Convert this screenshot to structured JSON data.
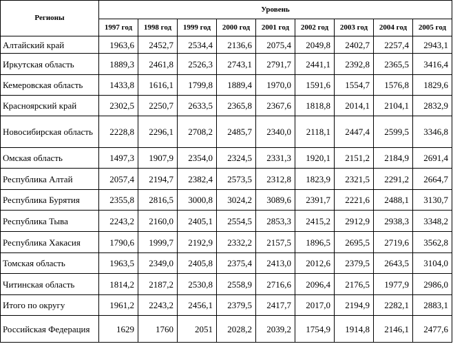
{
  "table": {
    "header": {
      "regions": "Регионы",
      "level": "Уровень",
      "years": [
        "1997 год",
        "1998 год",
        "1999 год",
        "2000 год",
        "2001 год",
        "2002 год",
        "2003 год",
        "2004 год",
        "2005 год"
      ]
    },
    "rows": [
      {
        "region": "Алтайский край",
        "values": [
          "1963,6",
          "2452,7",
          "2534,4",
          "2136,6",
          "2075,4",
          "2049,8",
          "2402,7",
          "2257,4",
          "2943,1"
        ]
      },
      {
        "region": "Иркутская область",
        "values": [
          "1889,3",
          "2461,8",
          "2526,3",
          "2743,1",
          "2791,7",
          "2441,1",
          "2392,8",
          "2365,5",
          "3416,4"
        ]
      },
      {
        "region": "Кемеровская область",
        "values": [
          "1433,8",
          "1616,1",
          "1799,8",
          "1889,4",
          "1970,0",
          "1591,6",
          "1554,7",
          "1576,8",
          "1829,6"
        ]
      },
      {
        "region": "Красноярский край",
        "values": [
          "2302,5",
          "2250,7",
          "2633,5",
          "2365,8",
          "2367,6",
          "1818,8",
          "2014,1",
          "2104,1",
          "2832,9"
        ]
      },
      {
        "region": "Новосибирская область",
        "values": [
          "2228,8",
          "2296,1",
          "2708,2",
          "2485,7",
          "2340,0",
          "2118,1",
          "2447,4",
          "2599,5",
          "3346,8"
        ]
      },
      {
        "region": "Омская область",
        "values": [
          "1497,3",
          "1907,9",
          "2354,0",
          "2324,5",
          "2331,3",
          "1920,1",
          "2151,2",
          "2184,9",
          "2691,4"
        ]
      },
      {
        "region": "Республика Алтай",
        "values": [
          "2057,4",
          "2194,7",
          "2382,4",
          "2573,5",
          "2312,8",
          "1823,9",
          "2321,5",
          "2291,2",
          "2664,7"
        ]
      },
      {
        "region": "Республика Бурятия",
        "values": [
          "2355,8",
          "2816,5",
          "3000,8",
          "3024,2",
          "3089,6",
          "2391,7",
          "2221,6",
          "2488,1",
          "3130,7"
        ]
      },
      {
        "region": "Республика Тыва",
        "values": [
          "2243,2",
          "2160,0",
          "2405,1",
          "2554,5",
          "2853,3",
          "2415,2",
          "2912,9",
          "2938,3",
          "3348,2"
        ]
      },
      {
        "region": "Республика Хакасия",
        "values": [
          "1790,6",
          "1999,7",
          "2192,9",
          "2332,2",
          "2157,5",
          "1896,5",
          "2695,5",
          "2719,6",
          "3562,8"
        ]
      },
      {
        "region": "Томская область",
        "values": [
          "1963,5",
          "2349,0",
          "2405,8",
          "2375,4",
          "2413,0",
          "2012,6",
          "2379,5",
          "2643,5",
          "3104,0"
        ]
      },
      {
        "region": "Читинская область",
        "values": [
          "1814,2",
          "2187,2",
          "2530,8",
          "2558,9",
          "2716,6",
          "2096,4",
          "2176,5",
          "1977,9",
          "2986,0"
        ]
      },
      {
        "region": "Итого по округу",
        "values": [
          "1961,2",
          "2243,2",
          "2456,1",
          "2379,5",
          "2417,7",
          "2017,0",
          "2194,9",
          "2282,1",
          "2883,1"
        ]
      },
      {
        "region": "Российская Федерация",
        "values": [
          "1629",
          "1760",
          "2051",
          "2028,2",
          "2039,2",
          "1754,9",
          "1914,8",
          "2146,1",
          "2477,6"
        ]
      }
    ]
  }
}
